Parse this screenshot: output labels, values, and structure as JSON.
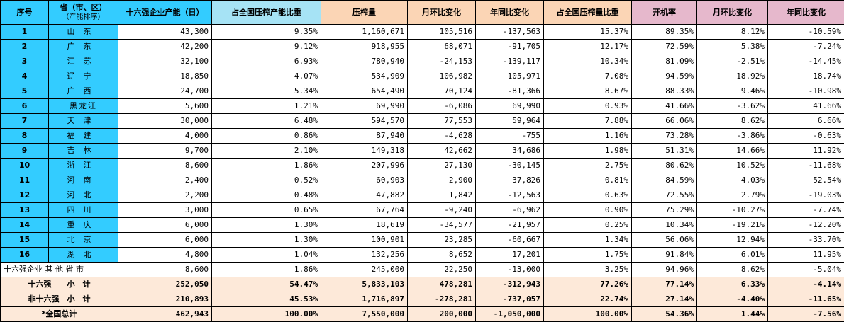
{
  "headers": {
    "seq": "序号",
    "province": "省（市、区）",
    "province_sub": "（产能排序）",
    "capacity": "十六强企业产能（日）",
    "capacity_share": "占全国压榨产能比重",
    "crush": "压榨量",
    "mom1": "月环比变化",
    "yoy1": "年同比变化",
    "crush_share": "占全国压榨量比重",
    "rate": "开机率",
    "mom2": "月环比变化",
    "yoy2": "年同比变化"
  },
  "rows": [
    {
      "seq": "1",
      "prov": "山东",
      "cap": "43,300",
      "cshare": "9.35%",
      "crush": "1,160,671",
      "mom": "105,516",
      "yoy": "-137,563",
      "pshare": "15.37%",
      "rate": "89.35%",
      "rmom": "8.12%",
      "ryoy": "-10.59%"
    },
    {
      "seq": "2",
      "prov": "广东",
      "cap": "42,200",
      "cshare": "9.12%",
      "crush": "918,955",
      "mom": "68,071",
      "yoy": "-91,705",
      "pshare": "12.17%",
      "rate": "72.59%",
      "rmom": "5.38%",
      "ryoy": "-7.24%"
    },
    {
      "seq": "3",
      "prov": "江苏",
      "cap": "32,100",
      "cshare": "6.93%",
      "crush": "780,940",
      "mom": "-24,153",
      "yoy": "-139,117",
      "pshare": "10.34%",
      "rate": "81.09%",
      "rmom": "-2.51%",
      "ryoy": "-14.45%"
    },
    {
      "seq": "4",
      "prov": "辽宁",
      "cap": "18,850",
      "cshare": "4.07%",
      "crush": "534,909",
      "mom": "106,982",
      "yoy": "105,971",
      "pshare": "7.08%",
      "rate": "94.59%",
      "rmom": "18.92%",
      "ryoy": "18.74%"
    },
    {
      "seq": "5",
      "prov": "广西",
      "cap": "24,700",
      "cshare": "5.34%",
      "crush": "654,490",
      "mom": "70,124",
      "yoy": "-81,366",
      "pshare": "8.67%",
      "rate": "88.33%",
      "rmom": "9.46%",
      "ryoy": "-10.98%"
    },
    {
      "seq": "6",
      "prov": "黑龙江",
      "cap": "5,600",
      "cshare": "1.21%",
      "crush": "69,990",
      "mom": "-6,086",
      "yoy": "69,990",
      "pshare": "0.93%",
      "rate": "41.66%",
      "rmom": "-3.62%",
      "ryoy": "41.66%"
    },
    {
      "seq": "7",
      "prov": "天津",
      "cap": "30,000",
      "cshare": "6.48%",
      "crush": "594,570",
      "mom": "77,553",
      "yoy": "59,964",
      "pshare": "7.88%",
      "rate": "66.06%",
      "rmom": "8.62%",
      "ryoy": "6.66%"
    },
    {
      "seq": "8",
      "prov": "福建",
      "cap": "4,000",
      "cshare": "0.86%",
      "crush": "87,940",
      "mom": "-4,628",
      "yoy": "-755",
      "pshare": "1.16%",
      "rate": "73.28%",
      "rmom": "-3.86%",
      "ryoy": "-0.63%"
    },
    {
      "seq": "9",
      "prov": "吉林",
      "cap": "9,700",
      "cshare": "2.10%",
      "crush": "149,318",
      "mom": "42,662",
      "yoy": "34,686",
      "pshare": "1.98%",
      "rate": "51.31%",
      "rmom": "14.66%",
      "ryoy": "11.92%"
    },
    {
      "seq": "10",
      "prov": "浙江",
      "cap": "8,600",
      "cshare": "1.86%",
      "crush": "207,996",
      "mom": "27,130",
      "yoy": "-30,145",
      "pshare": "2.75%",
      "rate": "80.62%",
      "rmom": "10.52%",
      "ryoy": "-11.68%"
    },
    {
      "seq": "11",
      "prov": "河南",
      "cap": "2,400",
      "cshare": "0.52%",
      "crush": "60,903",
      "mom": "2,900",
      "yoy": "37,826",
      "pshare": "0.81%",
      "rate": "84.59%",
      "rmom": "4.03%",
      "ryoy": "52.54%"
    },
    {
      "seq": "12",
      "prov": "河北",
      "cap": "2,200",
      "cshare": "0.48%",
      "crush": "47,882",
      "mom": "1,842",
      "yoy": "-12,563",
      "pshare": "0.63%",
      "rate": "72.55%",
      "rmom": "2.79%",
      "ryoy": "-19.03%"
    },
    {
      "seq": "13",
      "prov": "四川",
      "cap": "3,000",
      "cshare": "0.65%",
      "crush": "67,764",
      "mom": "-9,240",
      "yoy": "-6,962",
      "pshare": "0.90%",
      "rate": "75.29%",
      "rmom": "-10.27%",
      "ryoy": "-7.74%"
    },
    {
      "seq": "14",
      "prov": "重庆",
      "cap": "6,000",
      "cshare": "1.30%",
      "crush": "18,619",
      "mom": "-34,577",
      "yoy": "-21,957",
      "pshare": "0.25%",
      "rate": "10.34%",
      "rmom": "-19.21%",
      "ryoy": "-12.20%"
    },
    {
      "seq": "15",
      "prov": "北京",
      "cap": "6,000",
      "cshare": "1.30%",
      "crush": "100,901",
      "mom": "23,285",
      "yoy": "-60,667",
      "pshare": "1.34%",
      "rate": "56.06%",
      "rmom": "12.94%",
      "ryoy": "-33.70%"
    },
    {
      "seq": "16",
      "prov": "湖北",
      "cap": "4,800",
      "cshare": "1.04%",
      "crush": "132,256",
      "mom": "8,652",
      "yoy": "17,201",
      "pshare": "1.75%",
      "rate": "91.84%",
      "rmom": "6.01%",
      "ryoy": "11.95%"
    }
  ],
  "other": {
    "label": "十六强企业 其 他 省 市",
    "cap": "8,600",
    "cshare": "1.86%",
    "crush": "245,000",
    "mom": "22,250",
    "yoy": "-13,000",
    "pshare": "3.25%",
    "rate": "94.96%",
    "rmom": "8.62%",
    "ryoy": "-5.04%"
  },
  "summary": [
    {
      "label": "十六强　　小　计",
      "cap": "252,050",
      "cshare": "54.47%",
      "crush": "5,833,103",
      "mom": "478,281",
      "yoy": "-312,943",
      "pshare": "77.26%",
      "rate": "77.14%",
      "rmom": "6.33%",
      "ryoy": "-4.14%"
    },
    {
      "label": "非十六强　小　计",
      "cap": "210,893",
      "cshare": "45.53%",
      "crush": "1,716,897",
      "mom": "-278,281",
      "yoy": "-737,057",
      "pshare": "22.74%",
      "rate": "27.14%",
      "rmom": "-4.40%",
      "ryoy": "-11.65%"
    },
    {
      "label": "*全国总计",
      "cap": "462,943",
      "cshare": "100.00%",
      "crush": "7,550,000",
      "mom": "200,000",
      "yoy": "-1,050,000",
      "pshare": "100.00%",
      "rate": "54.36%",
      "rmom": "1.44%",
      "ryoy": "-7.56%"
    }
  ],
  "colors": {
    "seq_bg": "#33ccff",
    "share_bg": "#a6e3f5",
    "crush_bg": "#fbd5b5",
    "rate_bg": "#e6b8cc",
    "summary_bg": "#fde9d9"
  }
}
